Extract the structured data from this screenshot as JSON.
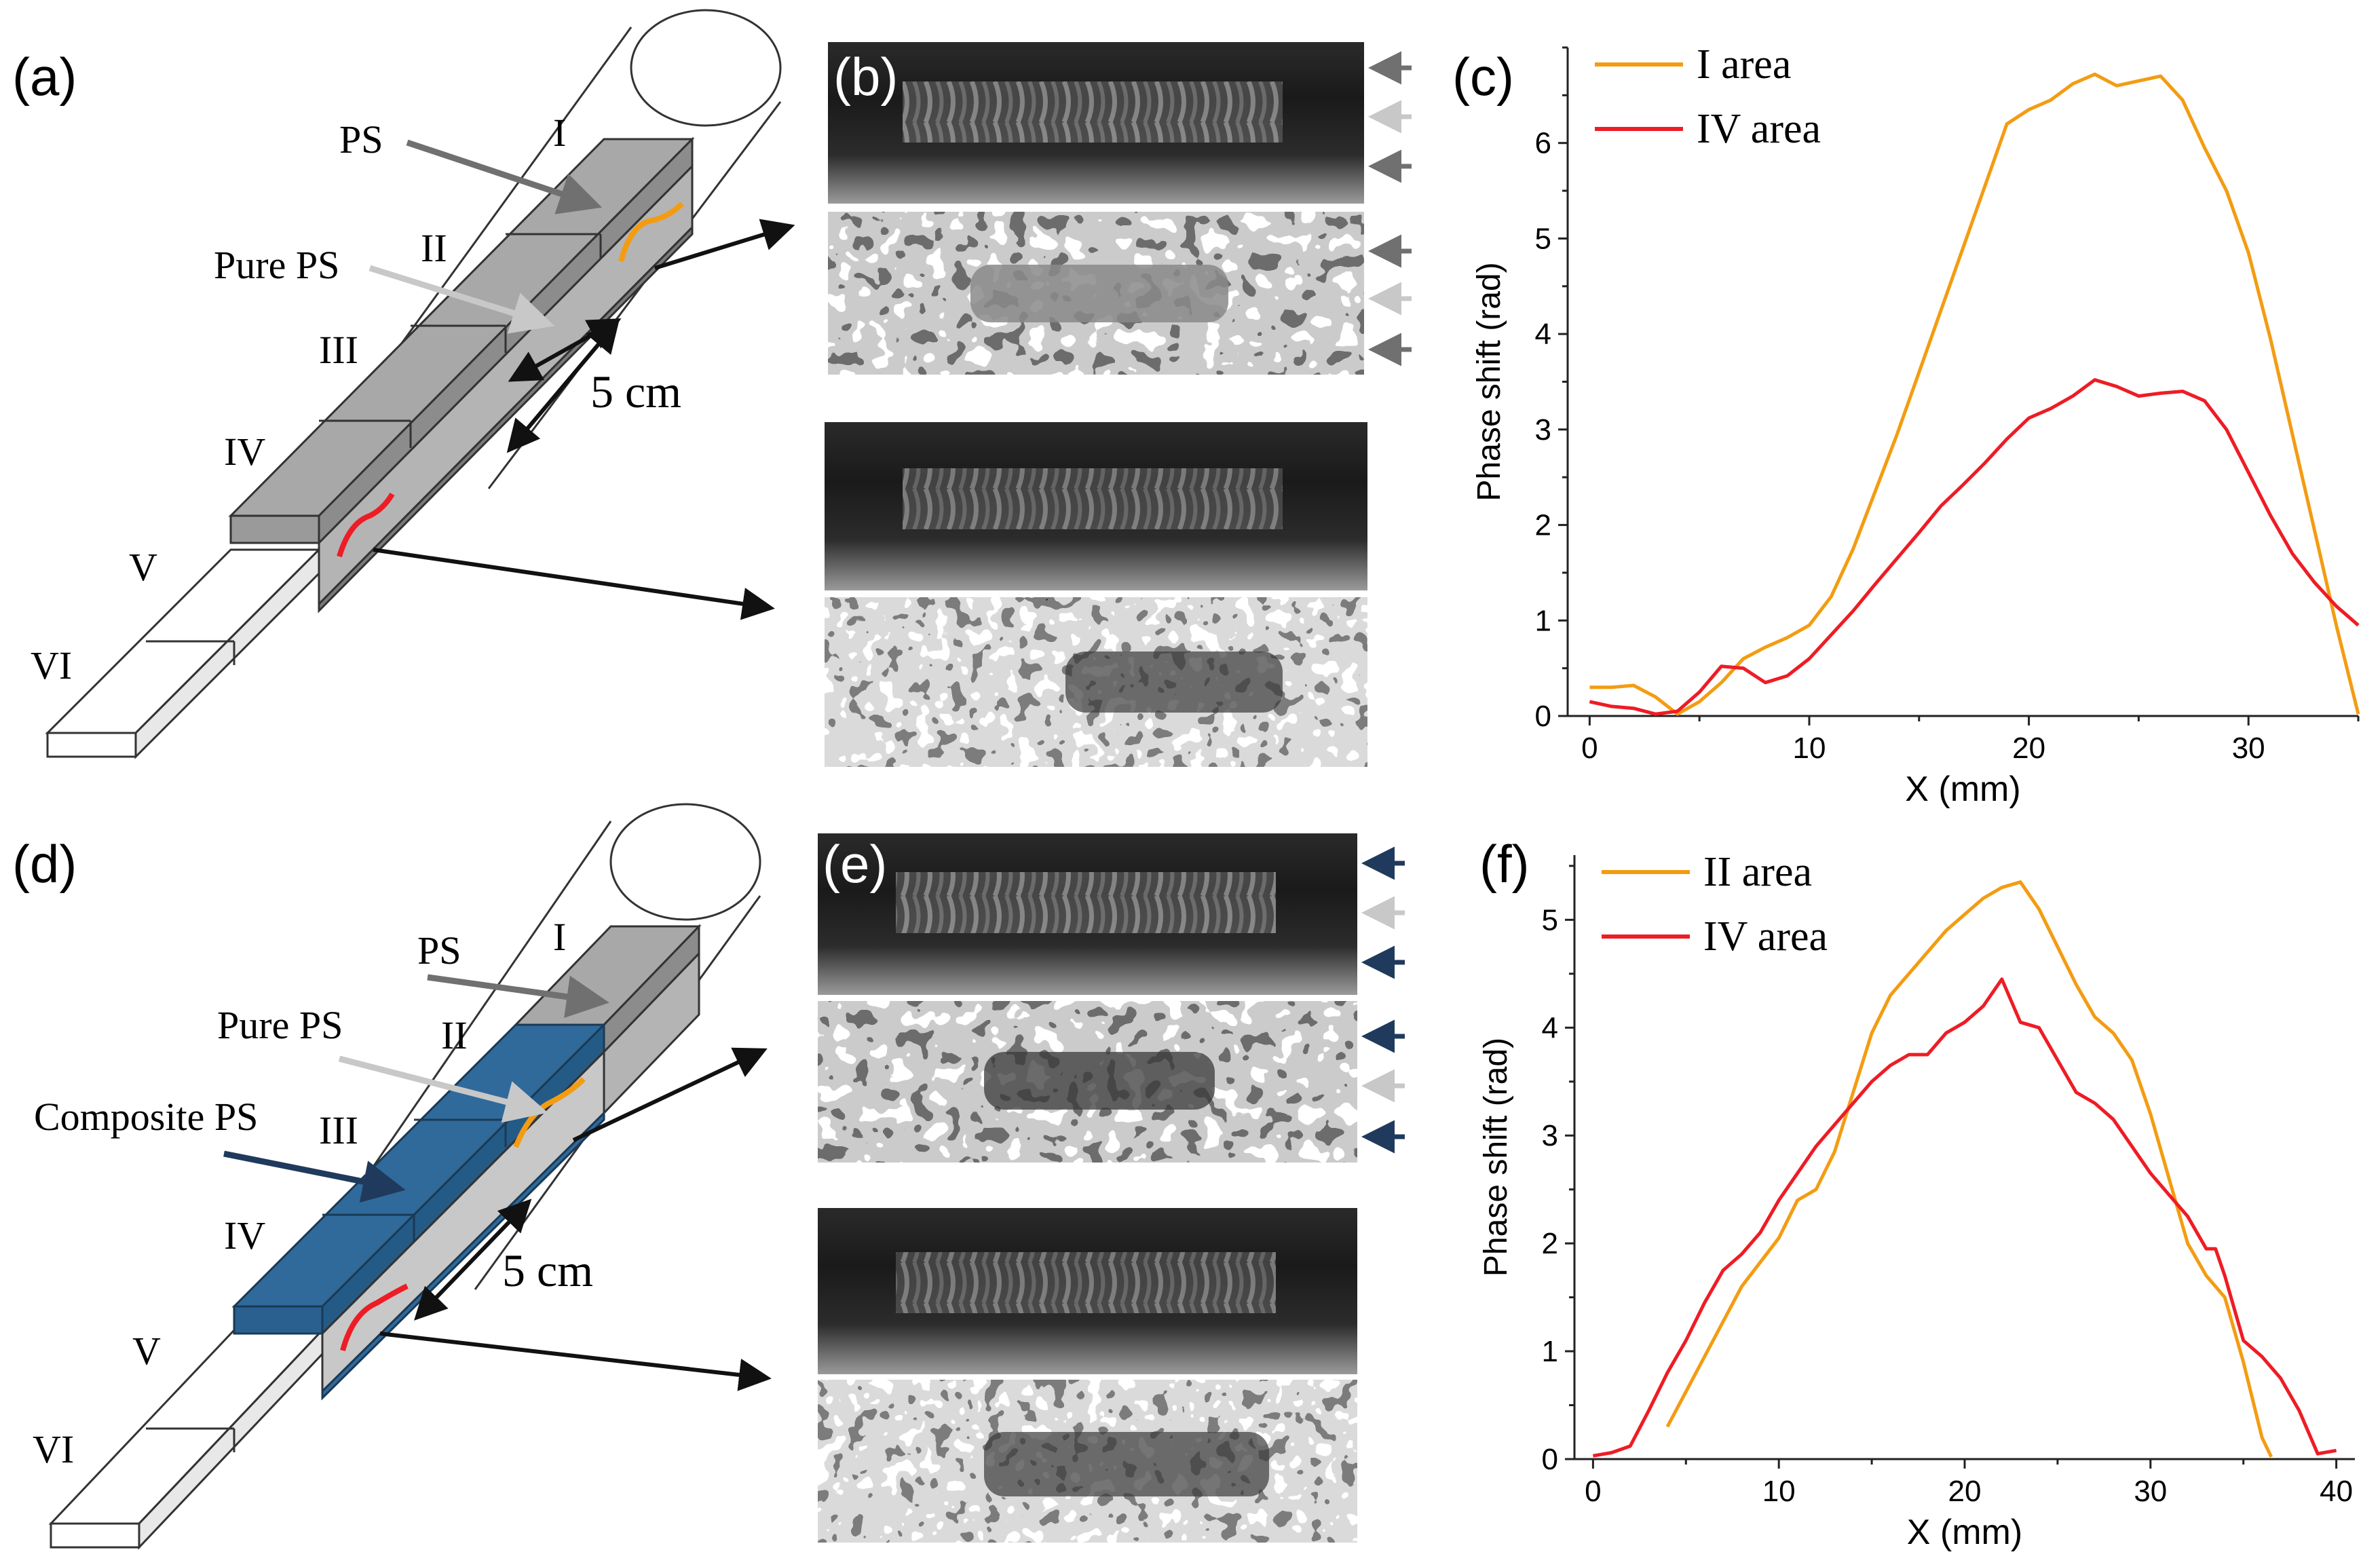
{
  "panels": {
    "a": {
      "letter": "(a)",
      "labels": {
        "ps": "PS",
        "pure_ps": "Pure PS",
        "scale": "5 cm"
      },
      "sections": [
        "I",
        "II",
        "III",
        "IV",
        "V",
        "VI"
      ]
    },
    "b": {
      "letter": "(b)"
    },
    "c": {
      "letter": "(c)"
    },
    "d": {
      "letter": "(d)",
      "labels": {
        "ps": "PS",
        "pure_ps": "Pure PS",
        "composite_ps": "Composite PS",
        "scale": "5 cm"
      },
      "sections": [
        "I",
        "II",
        "III",
        "IV",
        "V",
        "VI"
      ]
    },
    "e": {
      "letter": "(e)"
    },
    "f": {
      "letter": "(f)"
    }
  },
  "colors": {
    "orange": "#F39C12",
    "red": "#EE1C25",
    "gray_block": "#A8A8A8",
    "blue_block": "#2F6A9B",
    "arrow_dark": "#707070",
    "arrow_light": "#C8C8C8",
    "arrow_navy": "#1F3A5C"
  },
  "chart_data": [
    {
      "panel": "c",
      "type": "line",
      "xlabel": "X (mm)",
      "ylabel": "Phase shift (rad)",
      "xlim": [
        -1,
        35
      ],
      "ylim": [
        0,
        7
      ],
      "xticks": [
        0,
        10,
        20,
        30
      ],
      "yticks": [
        0,
        1,
        2,
        3,
        4,
        5,
        6
      ],
      "legend_position": "top-left",
      "series": [
        {
          "name": "I area",
          "color": "#F39C12",
          "x": [
            0,
            1,
            2,
            3,
            4,
            5,
            6,
            7,
            8,
            9,
            10,
            11,
            12,
            13,
            14,
            15,
            16,
            17,
            18,
            19,
            20,
            21,
            22,
            23,
            24,
            25,
            26,
            27,
            28,
            29,
            30,
            31,
            32,
            33,
            34,
            35
          ],
          "y": [
            0.3,
            0.3,
            0.32,
            0.2,
            0.02,
            0.15,
            0.35,
            0.6,
            0.72,
            0.82,
            0.95,
            1.25,
            1.75,
            2.35,
            2.95,
            3.6,
            4.25,
            4.9,
            5.55,
            6.2,
            6.35,
            6.45,
            6.62,
            6.72,
            6.6,
            6.65,
            6.7,
            6.45,
            5.95,
            5.5,
            4.85,
            3.95,
            2.95,
            1.95,
            0.95,
            0.02
          ]
        },
        {
          "name": "IV area",
          "color": "#EE1C25",
          "x": [
            0,
            1,
            2,
            3,
            4,
            5,
            6,
            7,
            8,
            9,
            10,
            11,
            12,
            13,
            14,
            15,
            16,
            17,
            18,
            19,
            20,
            21,
            22,
            23,
            24,
            25,
            26,
            27,
            28,
            29,
            30,
            31,
            32,
            33,
            34,
            35
          ],
          "y": [
            0.15,
            0.1,
            0.08,
            0.02,
            0.05,
            0.25,
            0.52,
            0.5,
            0.35,
            0.42,
            0.6,
            0.85,
            1.1,
            1.38,
            1.65,
            1.92,
            2.2,
            2.42,
            2.65,
            2.9,
            3.12,
            3.22,
            3.35,
            3.52,
            3.45,
            3.35,
            3.38,
            3.4,
            3.3,
            3.0,
            2.55,
            2.1,
            1.7,
            1.4,
            1.15,
            0.95
          ]
        }
      ]
    },
    {
      "panel": "f",
      "type": "line",
      "xlabel": "X (mm)",
      "ylabel": "Phase shift (rad)",
      "xlim": [
        -1,
        41
      ],
      "ylim": [
        0,
        5.6
      ],
      "xticks": [
        0,
        10,
        20,
        30,
        40
      ],
      "yticks": [
        0,
        1,
        2,
        3,
        4,
        5
      ],
      "legend_position": "top-left",
      "series": [
        {
          "name": "II area",
          "color": "#F39C12",
          "x": [
            4,
            6,
            8,
            10,
            11,
            12,
            13,
            14,
            15,
            16,
            17,
            18,
            19,
            20,
            21,
            22,
            23,
            24,
            25,
            26,
            27,
            28,
            29,
            30,
            31,
            32,
            33,
            34,
            35,
            36,
            36.5
          ],
          "y": [
            0.3,
            0.95,
            1.6,
            2.05,
            2.4,
            2.5,
            2.85,
            3.4,
            3.95,
            4.3,
            4.5,
            4.7,
            4.9,
            5.05,
            5.2,
            5.3,
            5.35,
            5.1,
            4.75,
            4.4,
            4.1,
            3.95,
            3.7,
            3.2,
            2.6,
            2.0,
            1.7,
            1.5,
            0.9,
            0.2,
            0.02
          ]
        },
        {
          "name": "IV area",
          "color": "#EE1C25",
          "x": [
            0,
            1,
            2,
            3,
            4,
            5,
            6,
            7,
            8,
            9,
            10,
            11,
            12,
            13,
            14,
            15,
            16,
            17,
            18,
            19,
            20,
            21,
            22,
            23,
            24,
            25,
            26,
            27,
            28,
            29,
            30,
            31,
            32,
            33,
            33.5,
            34,
            35,
            36,
            37,
            38,
            39,
            40
          ],
          "y": [
            0.03,
            0.06,
            0.12,
            0.45,
            0.8,
            1.1,
            1.45,
            1.75,
            1.9,
            2.1,
            2.4,
            2.65,
            2.9,
            3.1,
            3.3,
            3.5,
            3.65,
            3.75,
            3.75,
            3.95,
            4.05,
            4.2,
            4.45,
            4.05,
            4.0,
            3.7,
            3.4,
            3.3,
            3.15,
            2.9,
            2.65,
            2.45,
            2.25,
            1.95,
            1.95,
            1.7,
            1.1,
            0.95,
            0.75,
            0.45,
            0.05,
            0.08
          ]
        }
      ]
    }
  ]
}
